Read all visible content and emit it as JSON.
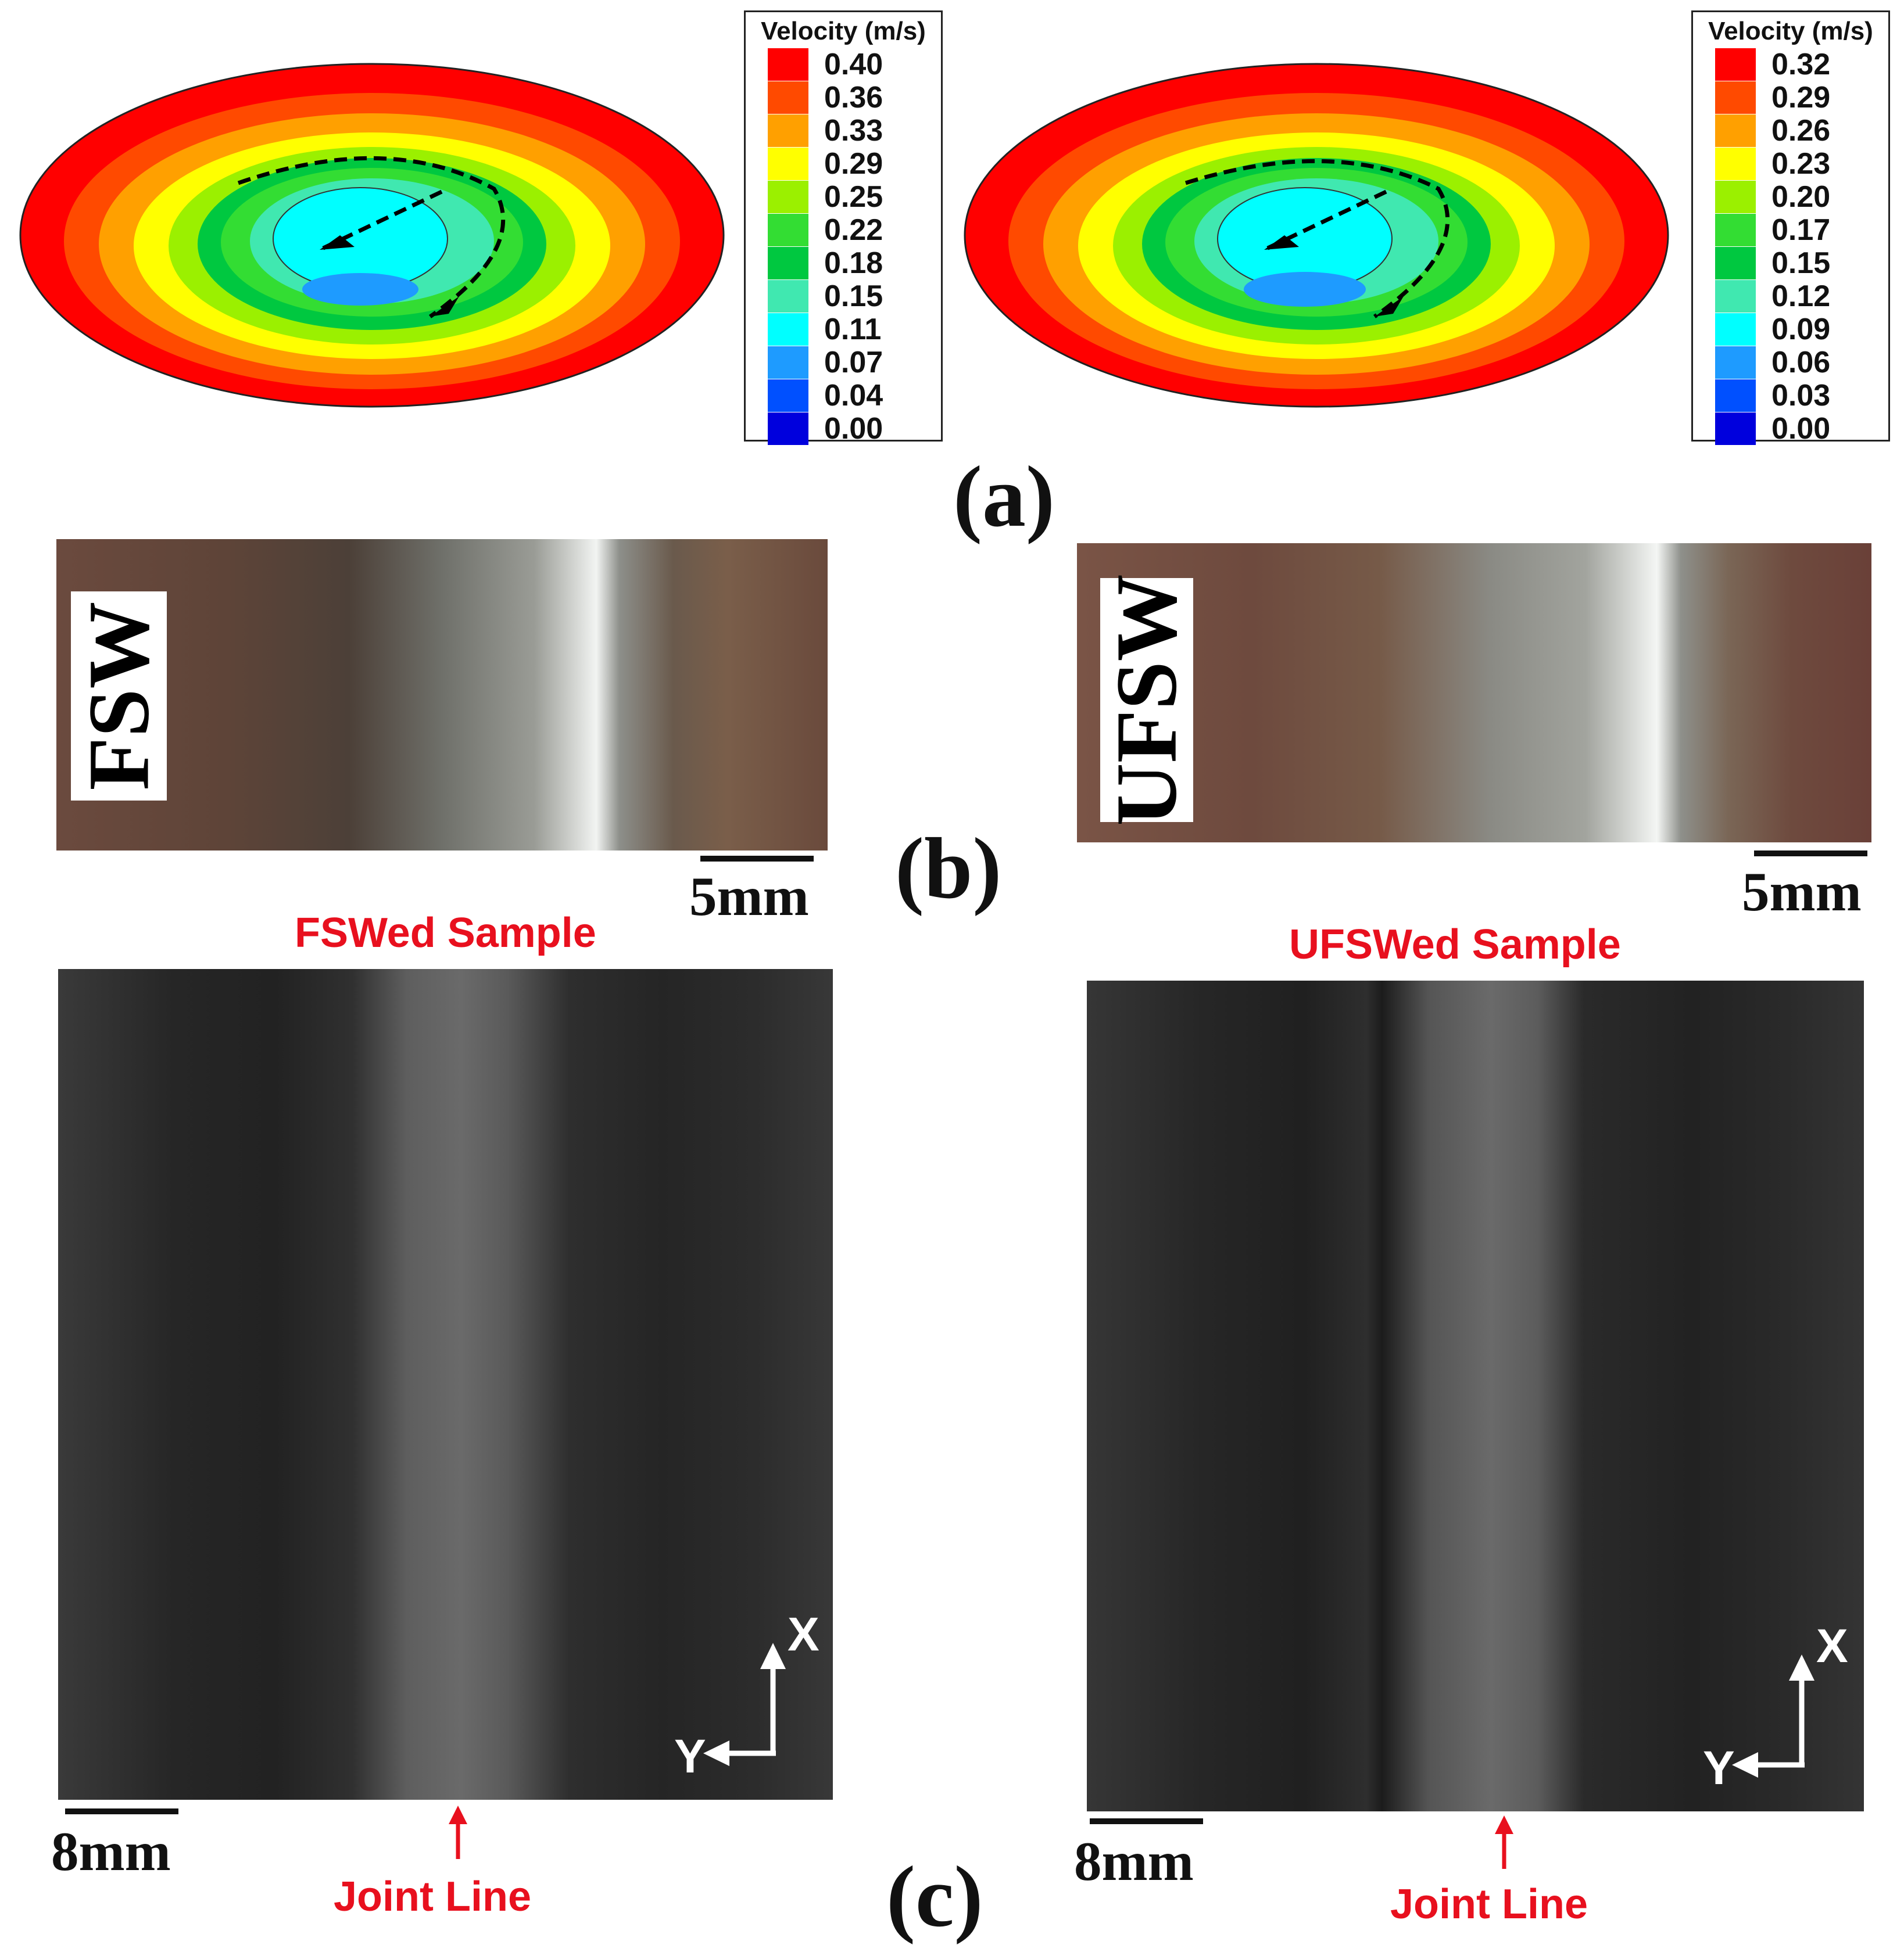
{
  "panel_a": {
    "tag": "(a)",
    "left_legend": {
      "title": "Velocity (m/s)",
      "values": [
        "0.40",
        "0.36",
        "0.33",
        "0.29",
        "0.25",
        "0.22",
        "0.18",
        "0.15",
        "0.11",
        "0.07",
        "0.04",
        "0.00"
      ]
    },
    "right_legend": {
      "title": "Velocity (m/s)",
      "values": [
        "0.32",
        "0.29",
        "0.26",
        "0.23",
        "0.20",
        "0.17",
        "0.15",
        "0.12",
        "0.09",
        "0.06",
        "0.03",
        "0.00"
      ]
    },
    "colors": [
      "#ff0000",
      "#ff4a00",
      "#ffa000",
      "#ffff00",
      "#9bf000",
      "#33dd33",
      "#00c840",
      "#40e8b0",
      "#00ffff",
      "#1e9bff",
      "#0050ff",
      "#0000dd"
    ]
  },
  "panel_b": {
    "tag": "(b)",
    "left_label": "FSW",
    "right_label": "UFSW",
    "left_scale": "5mm",
    "right_scale": "5mm"
  },
  "panel_c": {
    "tag": "(c)",
    "left_title": "FSWed Sample",
    "right_title": "UFSWed Sample",
    "left_scale": "8mm",
    "right_scale": "8mm",
    "left_joint": "Joint Line",
    "right_joint": "Joint Line",
    "axis_x": "X",
    "axis_y": "Y"
  }
}
